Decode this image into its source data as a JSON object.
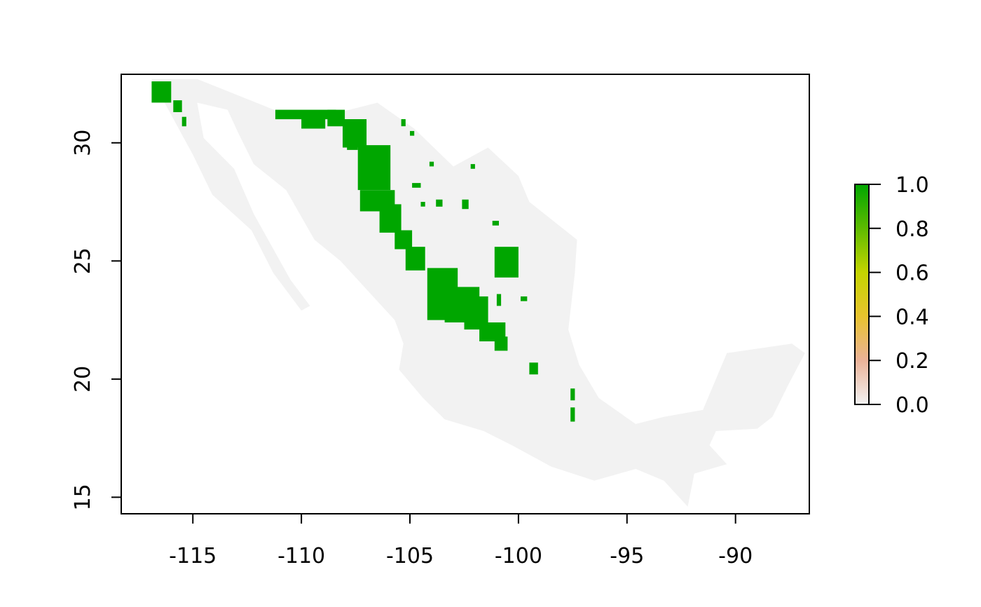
{
  "map": {
    "type": "raster",
    "xlim": [
      -118.3,
      -86.6
    ],
    "ylim": [
      14.3,
      32.9
    ],
    "x_ticks": [
      -115,
      -110,
      -105,
      -100,
      -95,
      -90
    ],
    "x_tick_labels": [
      "-115",
      "-110",
      "-105",
      "-100",
      "-95",
      "-90"
    ],
    "y_ticks": [
      15,
      20,
      25,
      30
    ],
    "y_tick_labels": [
      "15",
      "20",
      "25",
      "30"
    ],
    "grid": false,
    "background_color": "#f2f2f2",
    "presence_color": "#00a600",
    "outline": [
      [
        -116.9,
        32.7
      ],
      [
        -114.8,
        32.7
      ],
      [
        -111.0,
        31.3
      ],
      [
        -108.2,
        31.3
      ],
      [
        -106.5,
        31.7
      ],
      [
        -104.8,
        30.6
      ],
      [
        -103.0,
        29.0
      ],
      [
        -101.4,
        29.8
      ],
      [
        -100.0,
        28.6
      ],
      [
        -99.5,
        27.5
      ],
      [
        -97.3,
        25.9
      ],
      [
        -97.4,
        24.5
      ],
      [
        -97.7,
        22.1
      ],
      [
        -97.2,
        20.6
      ],
      [
        -96.3,
        19.2
      ],
      [
        -94.6,
        18.1
      ],
      [
        -93.3,
        18.4
      ],
      [
        -91.5,
        18.7
      ],
      [
        -90.4,
        21.1
      ],
      [
        -87.4,
        21.5
      ],
      [
        -86.8,
        21.1
      ],
      [
        -87.6,
        19.7
      ],
      [
        -88.3,
        18.4
      ],
      [
        -89.0,
        17.9
      ],
      [
        -90.9,
        17.8
      ],
      [
        -91.2,
        17.2
      ],
      [
        -90.4,
        16.4
      ],
      [
        -91.9,
        16.0
      ],
      [
        -92.2,
        14.6
      ],
      [
        -93.3,
        15.7
      ],
      [
        -94.6,
        16.2
      ],
      [
        -96.5,
        15.7
      ],
      [
        -98.5,
        16.3
      ],
      [
        -100.3,
        17.2
      ],
      [
        -101.6,
        17.8
      ],
      [
        -103.4,
        18.3
      ],
      [
        -104.4,
        19.2
      ],
      [
        -105.5,
        20.4
      ],
      [
        -105.3,
        21.5
      ],
      [
        -105.7,
        22.5
      ],
      [
        -106.9,
        23.7
      ],
      [
        -108.2,
        25.0
      ],
      [
        -109.4,
        25.9
      ],
      [
        -110.7,
        28.0
      ],
      [
        -112.2,
        29.1
      ],
      [
        -112.9,
        30.4
      ],
      [
        -113.4,
        31.4
      ],
      [
        -114.8,
        31.7
      ],
      [
        -114.5,
        30.2
      ],
      [
        -113.1,
        28.9
      ],
      [
        -112.2,
        27.0
      ],
      [
        -110.5,
        24.2
      ],
      [
        -109.6,
        23.1
      ],
      [
        -110.0,
        22.9
      ],
      [
        -111.3,
        24.5
      ],
      [
        -112.3,
        26.3
      ],
      [
        -114.1,
        27.8
      ],
      [
        -115.0,
        29.5
      ],
      [
        -116.9,
        32.7
      ]
    ],
    "presence_rects": [
      [
        -116.9,
        31.7,
        -116.0,
        32.6
      ],
      [
        -115.9,
        31.3,
        -115.5,
        31.8
      ],
      [
        -115.5,
        30.7,
        -115.3,
        31.1
      ],
      [
        -111.2,
        31.0,
        -108.4,
        31.4
      ],
      [
        -110.0,
        30.6,
        -108.9,
        31.0
      ],
      [
        -108.8,
        30.7,
        -108.0,
        31.4
      ],
      [
        -108.1,
        29.8,
        -107.0,
        31.0
      ],
      [
        -107.9,
        29.7,
        -107.4,
        30.0
      ],
      [
        -107.4,
        28.0,
        -105.9,
        29.9
      ],
      [
        -107.3,
        27.1,
        -105.7,
        28.0
      ],
      [
        -106.4,
        26.2,
        -105.4,
        27.4
      ],
      [
        -105.7,
        25.5,
        -104.9,
        26.3
      ],
      [
        -105.2,
        24.6,
        -104.3,
        25.6
      ],
      [
        -104.2,
        22.5,
        -102.8,
        24.7
      ],
      [
        -103.4,
        22.4,
        -101.8,
        23.9
      ],
      [
        -102.5,
        22.1,
        -101.4,
        23.5
      ],
      [
        -101.8,
        21.6,
        -100.6,
        22.4
      ],
      [
        -101.1,
        21.2,
        -100.5,
        21.8
      ],
      [
        -101.1,
        24.3,
        -100.0,
        25.6
      ],
      [
        -101.0,
        23.1,
        -100.8,
        23.6
      ],
      [
        -99.5,
        20.2,
        -99.1,
        20.7
      ],
      [
        -97.6,
        19.1,
        -97.4,
        19.6
      ],
      [
        -97.6,
        18.2,
        -97.4,
        18.8
      ],
      [
        -104.9,
        28.1,
        -104.5,
        28.3
      ],
      [
        -104.5,
        27.3,
        -104.3,
        27.5
      ],
      [
        -103.8,
        27.3,
        -103.5,
        27.6
      ],
      [
        -102.6,
        27.2,
        -102.3,
        27.6
      ],
      [
        -101.2,
        26.5,
        -100.9,
        26.7
      ],
      [
        -99.9,
        23.3,
        -99.6,
        23.5
      ],
      [
        -102.2,
        28.9,
        -102.0,
        29.1
      ],
      [
        -105.4,
        30.7,
        -105.2,
        31.0
      ],
      [
        -105.0,
        30.3,
        -104.8,
        30.5
      ],
      [
        -104.1,
        29.0,
        -103.9,
        29.2
      ]
    ]
  },
  "legend": {
    "min": 0.0,
    "max": 1.0,
    "labels": [
      "0.0",
      "0.2",
      "0.4",
      "0.6",
      "0.8",
      "1.0"
    ],
    "colors": [
      "#f2f2f2",
      "#ebb298",
      "#e8c32e",
      "#c4d400",
      "#5ebb00",
      "#00a600"
    ]
  }
}
